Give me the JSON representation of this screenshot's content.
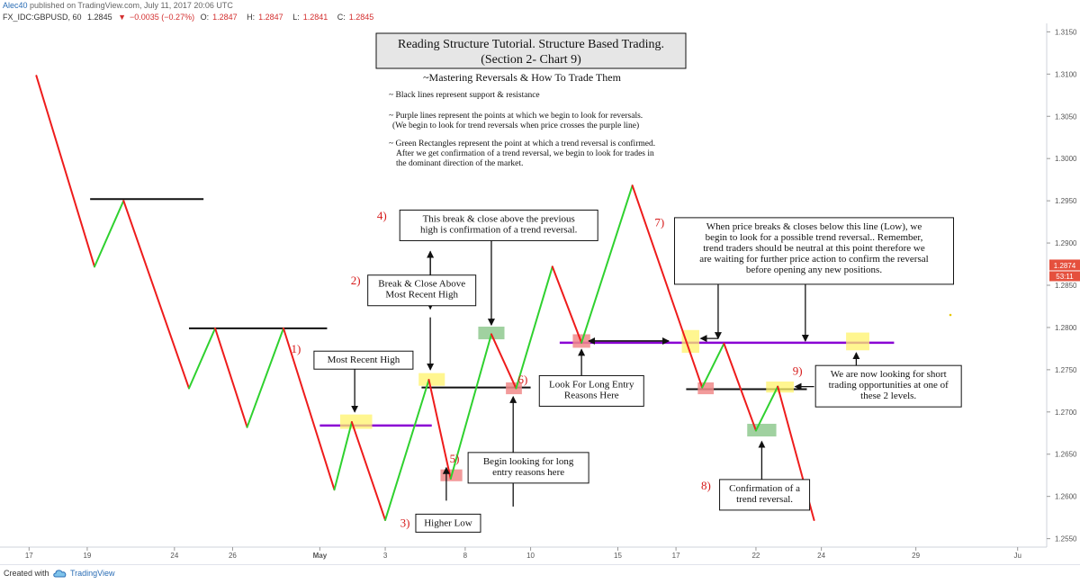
{
  "header": {
    "user": "Alec40",
    "published": "published on TradingView.com, July 11, 2017 20:06 UTC",
    "symbol": "FX_IDC:GBPUSD, 60",
    "price": "1.2845",
    "change_arrow": "▼",
    "change": "−0.0035 (−0.27%)",
    "open_label": "O:",
    "open": "1.2847",
    "high_label": "H:",
    "high": "1.2847",
    "low_label": "L:",
    "low": "1.2841",
    "close_label": "C:",
    "close": "1.2845"
  },
  "footer": {
    "created": "Created with",
    "brand": "TradingView",
    "logo_icon": "tradingview-cloud-icon"
  },
  "chart_data": {
    "type": "line",
    "title": "Reading Structure Tutorial. Structure Based Trading.",
    "subtitle": "(Section 2- Chart 9)",
    "heading": "~Mastering Reversals & How To Trade Them",
    "notes": [
      "~ Black lines represent support & resistance",
      "~ Purple lines represent the points at which we begin to look for reversals.",
      "(We begin to look for trend reversals when price crosses the purple line)",
      "~ Green Rectangles represent the point at which a trend reversal is confirmed.",
      "After we get confirmation of a trend reversal, we begin to look for trades in",
      "the dominant direction of the market."
    ],
    "xlim": [
      0,
      72
    ],
    "ylim": [
      1.254,
      1.316
    ],
    "x_ticks": [
      {
        "x": 2,
        "label": "17"
      },
      {
        "x": 6,
        "label": "19"
      },
      {
        "x": 12,
        "label": "24"
      },
      {
        "x": 16,
        "label": "26"
      },
      {
        "x": 22,
        "label": "May"
      },
      {
        "x": 26.5,
        "label": "3"
      },
      {
        "x": 32,
        "label": "8"
      },
      {
        "x": 36.5,
        "label": "10"
      },
      {
        "x": 42.5,
        "label": "15"
      },
      {
        "x": 46.5,
        "label": "17"
      },
      {
        "x": 52,
        "label": "22"
      },
      {
        "x": 56.5,
        "label": "24"
      },
      {
        "x": 63,
        "label": "29"
      },
      {
        "x": 70,
        "label": "Ju"
      }
    ],
    "y_ticks": [
      "1.2550",
      "1.2600",
      "1.2650",
      "1.2700",
      "1.2750",
      "1.2800",
      "1.2850",
      "1.2900",
      "1.2950",
      "1.3000",
      "1.3050",
      "1.3100",
      "1.3150"
    ],
    "current_price": {
      "value": 1.2874,
      "label": "1.2874",
      "countdown": "53:11",
      "color": "#e5503d"
    },
    "swing_points": [
      {
        "x": 2.5,
        "y": 1.3098
      },
      {
        "x": 6.5,
        "y": 1.2872
      },
      {
        "x": 8.5,
        "y": 1.295
      },
      {
        "x": 13,
        "y": 1.2728
      },
      {
        "x": 14.8,
        "y": 1.2799
      },
      {
        "x": 17,
        "y": 1.2682
      },
      {
        "x": 19.5,
        "y": 1.2799
      },
      {
        "x": 23,
        "y": 1.2608
      },
      {
        "x": 24.2,
        "y": 1.2688
      },
      {
        "x": 26.5,
        "y": 1.2572
      },
      {
        "x": 29.5,
        "y": 1.2738
      },
      {
        "x": 31,
        "y": 1.2621
      },
      {
        "x": 33.8,
        "y": 1.2792
      },
      {
        "x": 35.5,
        "y": 1.2728
      },
      {
        "x": 38,
        "y": 1.2872
      },
      {
        "x": 40,
        "y": 1.2782
      },
      {
        "x": 43.5,
        "y": 1.2968
      },
      {
        "x": 48.3,
        "y": 1.2729
      },
      {
        "x": 49.8,
        "y": 1.2781
      },
      {
        "x": 52,
        "y": 1.2678
      },
      {
        "x": 53.5,
        "y": 1.273
      },
      {
        "x": 56,
        "y": 1.2572
      }
    ],
    "colors": {
      "up": "#2fd12f",
      "down": "#ee1c1c",
      "support_resistance": "#111111",
      "reversal_line": "#8a00d4",
      "confirm_box": "#8fc98f",
      "highlight_box": "#fff36b",
      "pink_box": "#f08a8a",
      "price_label": "#e5503d"
    },
    "support_resistance_lines": [
      {
        "x1": 6.2,
        "x2": 14,
        "y": 1.2952
      },
      {
        "x1": 13,
        "x2": 22.5,
        "y": 1.2799
      },
      {
        "x1": 29,
        "x2": 36.5,
        "y": 1.2729
      },
      {
        "x1": 47.2,
        "x2": 55.5,
        "y": 1.2727
      }
    ],
    "reversal_lines": [
      {
        "x1": 22,
        "x2": 29.7,
        "y": 1.2684
      },
      {
        "x1": 38.5,
        "x2": 61.5,
        "y": 1.2782
      }
    ],
    "boxes": [
      {
        "x1": 23.4,
        "x2": 25.6,
        "y1": 1.268,
        "y2": 1.2697,
        "kind": "highlight"
      },
      {
        "x1": 28.8,
        "x2": 30.6,
        "y1": 1.2731,
        "y2": 1.2746,
        "kind": "highlight"
      },
      {
        "x1": 30.3,
        "x2": 31.8,
        "y1": 1.2618,
        "y2": 1.2632,
        "kind": "pink"
      },
      {
        "x1": 32.9,
        "x2": 34.7,
        "y1": 1.2786,
        "y2": 1.2801,
        "kind": "confirm"
      },
      {
        "x1": 34.8,
        "x2": 35.9,
        "y1": 1.2721,
        "y2": 1.2735,
        "kind": "pink"
      },
      {
        "x1": 39.4,
        "x2": 40.6,
        "y1": 1.2776,
        "y2": 1.2792,
        "kind": "pink"
      },
      {
        "x1": 46.9,
        "x2": 48.1,
        "y1": 1.277,
        "y2": 1.2797,
        "kind": "highlight"
      },
      {
        "x1": 48.0,
        "x2": 49.1,
        "y1": 1.2721,
        "y2": 1.2735,
        "kind": "pink"
      },
      {
        "x1": 51.4,
        "x2": 53.4,
        "y1": 1.2671,
        "y2": 1.2686,
        "kind": "confirm"
      },
      {
        "x1": 52.7,
        "x2": 54.6,
        "y1": 1.2723,
        "y2": 1.2736,
        "kind": "highlight"
      },
      {
        "x1": 58.2,
        "x2": 59.8,
        "y1": 1.2773,
        "y2": 1.2794,
        "kind": "highlight"
      }
    ],
    "annotations": [
      {
        "num": "1)",
        "lines": [
          "Most Recent High"
        ],
        "bx": 21.6,
        "by": 1.2772,
        "w": 110,
        "h": 20,
        "nx": 20.7,
        "ny": 1.277
      },
      {
        "num": "2)",
        "lines": [
          "Break & Close Above",
          "Most Recent High"
        ],
        "bx": 25.3,
        "by": 1.2862,
        "w": 120,
        "h": 34,
        "nx": 24.8,
        "ny": 1.2851
      },
      {
        "num": "3)",
        "lines": [
          "Higher Low"
        ],
        "bx": 28.6,
        "by": 1.2579,
        "w": 72,
        "h": 20,
        "nx": 28.2,
        "ny": 1.2564
      },
      {
        "num": "4)",
        "lines": [
          "This break & close above the previous",
          "high is confirmation of a trend reversal."
        ],
        "bx": 27.5,
        "by": 1.2939,
        "w": 220,
        "h": 34,
        "nx": 26.6,
        "ny": 1.2928
      },
      {
        "num": "5)",
        "lines": [
          "Begin looking for long",
          "entry reasons here"
        ],
        "bx": 32.2,
        "by": 1.2652,
        "w": 134,
        "h": 34,
        "nx": 31.6,
        "ny": 1.264
      },
      {
        "num": "6)",
        "lines": [
          "Look For Long Entry",
          "Reasons Here"
        ],
        "bx": 37.1,
        "by": 1.2743,
        "w": 116,
        "h": 34,
        "nx": 36.3,
        "ny": 1.2734
      },
      {
        "num": "7)",
        "lines": [
          "When price breaks & closes below this line (Low), we",
          "begin to look for a possible trend reversal.. Remember,",
          "trend traders should be neutral at this point therefore we",
          "are waiting for further price action to confirm the reversal",
          "before opening any new positions."
        ],
        "bx": 46.4,
        "by": 1.293,
        "w": 310,
        "h": 74,
        "nx": 45.7,
        "ny": 1.292
      },
      {
        "num": "8)",
        "lines": [
          "Confirmation of a",
          "trend reversal."
        ],
        "bx": 49.5,
        "by": 1.262,
        "w": 100,
        "h": 34,
        "nx": 48.9,
        "ny": 1.2608
      },
      {
        "num": "9)",
        "lines": [
          "We are now looking for short",
          "trading opportunities at one of",
          "these 2 levels."
        ],
        "bx": 56.1,
        "by": 1.2755,
        "w": 162,
        "h": 46,
        "nx": 55.2,
        "ny": 1.2744
      }
    ],
    "arrows": [
      {
        "x1": 24.4,
        "y1": 1.2767,
        "x2": 24.4,
        "y2": 1.27
      },
      {
        "x1": 29.6,
        "y1": 1.289,
        "x2": 29.6,
        "y2": 1.2822
      },
      {
        "x1": 29.6,
        "y1": 1.2822,
        "x2": 29.6,
        "y2": 1.289
      },
      {
        "x1": 29.6,
        "y1": 1.2812,
        "x2": 29.6,
        "y2": 1.275
      },
      {
        "x1": 33.8,
        "y1": 1.2905,
        "x2": 33.8,
        "y2": 1.2803
      },
      {
        "x1": 30.7,
        "y1": 1.2595,
        "x2": 30.7,
        "y2": 1.2634
      },
      {
        "x1": 35.3,
        "y1": 1.2588,
        "x2": 35.3,
        "y2": 1.2718
      },
      {
        "x1": 40.0,
        "y1": 1.2743,
        "x2": 40.0,
        "y2": 1.2774
      },
      {
        "x1": 40.5,
        "y1": 1.2784,
        "x2": 46.0,
        "y2": 1.2784
      },
      {
        "x1": 46.0,
        "y1": 1.2784,
        "x2": 40.5,
        "y2": 1.2784
      },
      {
        "x1": 49.4,
        "y1": 1.2856,
        "x2": 49.4,
        "y2": 1.2787
      },
      {
        "x1": 49.4,
        "y1": 1.2787,
        "x2": 48.2,
        "y2": 1.2787
      },
      {
        "x1": 55.4,
        "y1": 1.2856,
        "x2": 55.4,
        "y2": 1.2784
      },
      {
        "x1": 52.4,
        "y1": 1.2618,
        "x2": 52.4,
        "y2": 1.2665
      },
      {
        "x1": 56.0,
        "y1": 1.273,
        "x2": 54.7,
        "y2": 1.273
      },
      {
        "x1": 58.9,
        "y1": 1.2755,
        "x2": 58.9,
        "y2": 1.277
      }
    ]
  }
}
